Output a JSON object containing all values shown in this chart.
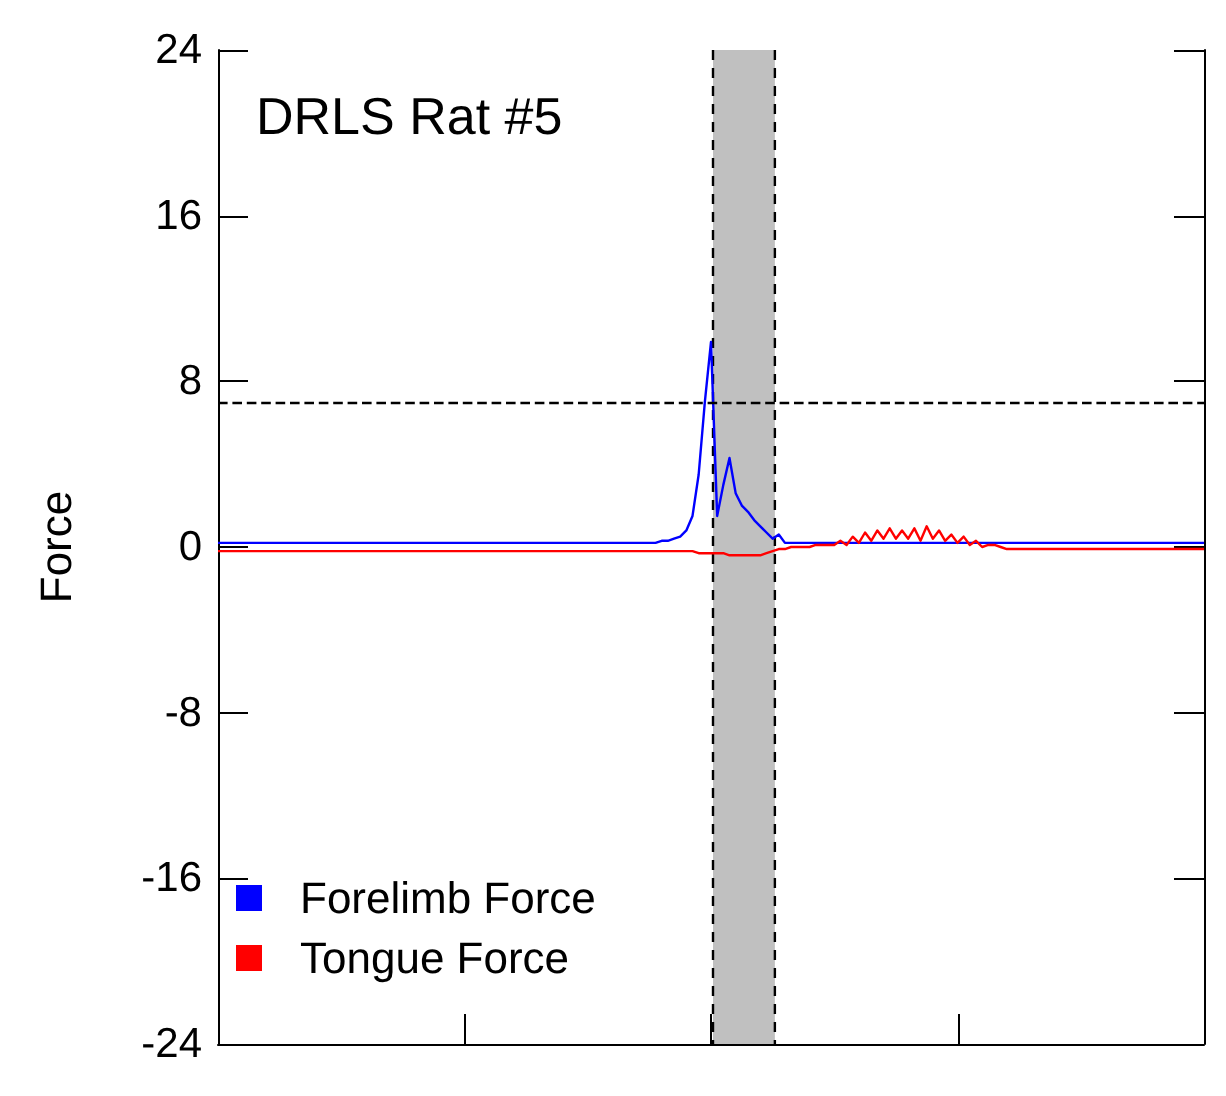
{
  "chart_data": {
    "type": "line",
    "title": "DRLS Rat #5",
    "ylabel": "Force",
    "categories": [
      null,
      null,
      null,
      null,
      null,
      null,
      null,
      null,
      null,
      null,
      null,
      null,
      null,
      null,
      null,
      null,
      null,
      null,
      null,
      null,
      null,
      null,
      null,
      null,
      null,
      null,
      null,
      null,
      null,
      null,
      null,
      null,
      null,
      null,
      null,
      null,
      null,
      null,
      null,
      null,
      null,
      null,
      null,
      null,
      null,
      null,
      null,
      null,
      null,
      null,
      null,
      null,
      null,
      null,
      null,
      null,
      null,
      null,
      null,
      null,
      null,
      null,
      null,
      null,
      null,
      null,
      null,
      null,
      null,
      null,
      null,
      null,
      null,
      null,
      null,
      null,
      null,
      null,
      null,
      null,
      null,
      null,
      null,
      null,
      null,
      null,
      null,
      null,
      null,
      null,
      null,
      null,
      null,
      null,
      null,
      null,
      null,
      null,
      null,
      null,
      null,
      null,
      null,
      null,
      null,
      null,
      null,
      null,
      null,
      null,
      null,
      null,
      null,
      null,
      null,
      null,
      null,
      null,
      null,
      null,
      null,
      null,
      null,
      null,
      null,
      null,
      null,
      null,
      null,
      null,
      null,
      null,
      null,
      null,
      null,
      null,
      null,
      null,
      null,
      null,
      null,
      null,
      null,
      null,
      null,
      null,
      null,
      null,
      null,
      null,
      null,
      null,
      null,
      null,
      null,
      null,
      null,
      null,
      null,
      null,
      null
    ],
    "ylim": [
      -24,
      24
    ],
    "yticks": [
      -24,
      -16,
      -8,
      0,
      8,
      16,
      24
    ],
    "grid": false,
    "legend": "bottom left",
    "marker": "none",
    "line_style": "solid",
    "series": [
      {
        "name": "Forelimb Force",
        "color": "#0000ff",
        "values": [
          0.2,
          0.2,
          0.2,
          0.2,
          0.2,
          0.2,
          0.2,
          0.2,
          0.2,
          0.2,
          0.2,
          0.2,
          0.2,
          0.2,
          0.2,
          0.2,
          0.2,
          0.2,
          0.2,
          0.2,
          0.2,
          0.2,
          0.2,
          0.2,
          0.2,
          0.2,
          0.2,
          0.2,
          0.2,
          0.2,
          0.2,
          0.2,
          0.2,
          0.2,
          0.2,
          0.2,
          0.2,
          0.2,
          0.2,
          0.2,
          0.2,
          0.2,
          0.2,
          0.2,
          0.2,
          0.2,
          0.2,
          0.2,
          0.2,
          0.2,
          0.2,
          0.2,
          0.2,
          0.2,
          0.2,
          0.2,
          0.2,
          0.2,
          0.2,
          0.2,
          0.2,
          0.2,
          0.2,
          0.2,
          0.2,
          0.2,
          0.2,
          0.2,
          0.2,
          0.2,
          0.2,
          0.2,
          0.3,
          0.3,
          0.4,
          0.5,
          0.8,
          1.5,
          3.5,
          7,
          9.9,
          1.5,
          3,
          4.3,
          2.6,
          2,
          1.7,
          1.3,
          1.0,
          0.7,
          0.4,
          0.6,
          0.2,
          0.2,
          0.2,
          0.2,
          0.2,
          0.2,
          0.2,
          0.2,
          0.2,
          0.2,
          0.2,
          0.2,
          0.2,
          0.2,
          0.2,
          0.2,
          0.2,
          0.2,
          0.2,
          0.2,
          0.2,
          0.2,
          0.2,
          0.2,
          0.2,
          0.2,
          0.2,
          0.2,
          0.2,
          0.2,
          0.2,
          0.2,
          0.2,
          0.2,
          0.2,
          0.2,
          0.2,
          0.2,
          0.2,
          0.2,
          0.2,
          0.2,
          0.2,
          0.2,
          0.2,
          0.2,
          0.2,
          0.2,
          0.2,
          0.2,
          0.2,
          0.2,
          0.2,
          0.2,
          0.2,
          0.2,
          0.2,
          0.2,
          0.2,
          0.2,
          0.2,
          0.2,
          0.2,
          0.2,
          0.2,
          0.2,
          0.2,
          0.2,
          0.2
        ]
      },
      {
        "name": "Tongue Force",
        "color": "#ff0000",
        "values": [
          -0.2,
          -0.2,
          -0.2,
          -0.2,
          -0.2,
          -0.2,
          -0.2,
          -0.2,
          -0.2,
          -0.2,
          -0.2,
          -0.2,
          -0.2,
          -0.2,
          -0.2,
          -0.2,
          -0.2,
          -0.2,
          -0.2,
          -0.2,
          -0.2,
          -0.2,
          -0.2,
          -0.2,
          -0.2,
          -0.2,
          -0.2,
          -0.2,
          -0.2,
          -0.2,
          -0.2,
          -0.2,
          -0.2,
          -0.2,
          -0.2,
          -0.2,
          -0.2,
          -0.2,
          -0.2,
          -0.2,
          -0.2,
          -0.2,
          -0.2,
          -0.2,
          -0.2,
          -0.2,
          -0.2,
          -0.2,
          -0.2,
          -0.2,
          -0.2,
          -0.2,
          -0.2,
          -0.2,
          -0.2,
          -0.2,
          -0.2,
          -0.2,
          -0.2,
          -0.2,
          -0.2,
          -0.2,
          -0.2,
          -0.2,
          -0.2,
          -0.2,
          -0.2,
          -0.2,
          -0.2,
          -0.2,
          -0.2,
          -0.2,
          -0.2,
          -0.2,
          -0.2,
          -0.2,
          -0.2,
          -0.2,
          -0.3,
          -0.3,
          -0.3,
          -0.3,
          -0.3,
          -0.4,
          -0.4,
          -0.4,
          -0.4,
          -0.4,
          -0.4,
          -0.3,
          -0.2,
          -0.1,
          -0.1,
          0,
          0,
          0,
          0,
          0.1,
          0.1,
          0.1,
          0.1,
          0.3,
          0.1,
          0.5,
          0.2,
          0.7,
          0.3,
          0.8,
          0.4,
          0.9,
          0.4,
          0.8,
          0.4,
          0.9,
          0.3,
          1.0,
          0.4,
          0.8,
          0.3,
          0.6,
          0.2,
          0.5,
          0.1,
          0.3,
          0,
          0.1,
          0.1,
          0,
          -0.1,
          -0.1,
          -0.1,
          -0.1,
          -0.1,
          -0.1,
          -0.1,
          -0.1,
          -0.1,
          -0.1,
          -0.1,
          -0.1,
          -0.1,
          -0.1,
          -0.1,
          -0.1,
          -0.1,
          -0.1,
          -0.1,
          -0.1,
          -0.1,
          -0.1,
          -0.1,
          -0.1,
          -0.1,
          -0.1,
          -0.1,
          -0.1,
          -0.1,
          -0.1,
          -0.1,
          -0.1,
          -0.1
        ]
      }
    ],
    "ref_lines": [
      {
        "axis": "y",
        "value": 7,
        "line_style": "dashed"
      }
    ]
  }
}
